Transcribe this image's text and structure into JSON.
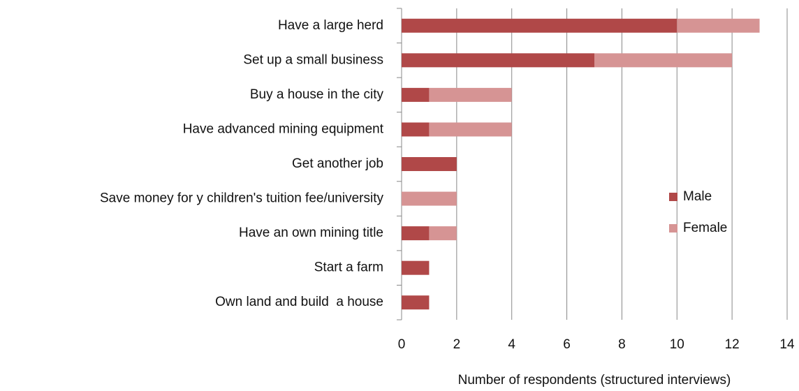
{
  "chart_data": {
    "type": "bar",
    "orientation": "horizontal",
    "stacked": true,
    "x_label": "Number of respondents (structured interviews)",
    "categories": [
      "Have a large herd",
      "Set up a small business",
      "Buy a house in the city",
      "Have advanced mining equipment",
      "Get another job",
      "Save money for y children's tuition fee/university",
      "Have an own mining title",
      "Start a farm",
      "Own land and build  a house"
    ],
    "series": [
      {
        "name": "Male",
        "color": "#b04848",
        "values": [
          10,
          7,
          1,
          1,
          2,
          0,
          1,
          1,
          1
        ]
      },
      {
        "name": "Female",
        "color": "#d69494",
        "values": [
          3,
          5,
          3,
          3,
          0,
          2,
          1,
          0,
          0
        ]
      }
    ],
    "xlim": [
      0,
      14
    ],
    "xticks": [
      0,
      2,
      4,
      6,
      8,
      10,
      12,
      14
    ],
    "grid": true,
    "legend": "right"
  }
}
